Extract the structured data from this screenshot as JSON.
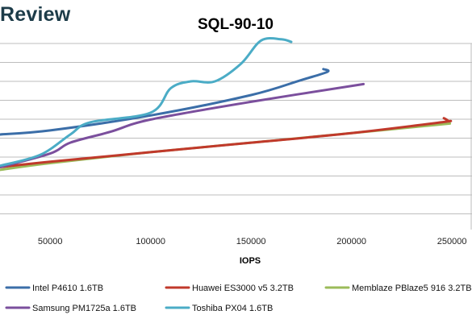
{
  "brand": {
    "name": "Review"
  },
  "chart_data": {
    "type": "line",
    "title": "SQL-90-10",
    "xlabel": "IOPS",
    "ylabel": "",
    "xlim": [
      25000,
      260000
    ],
    "x_ticks": [
      50000,
      100000,
      150000,
      200000,
      250000
    ],
    "x_tick_labels": [
      "50000",
      "100000",
      "150000",
      "200000",
      "250000"
    ],
    "grid": "horizontal",
    "legend_position": "bottom",
    "series": [
      {
        "name": "Intel P4610 1.6TB",
        "color": "#3b6ea8",
        "points": [
          [
            25000,
            1.16
          ],
          [
            50000,
            1.19
          ],
          [
            100000,
            1.3
          ],
          [
            150000,
            1.45
          ],
          [
            175000,
            1.56
          ],
          [
            188000,
            1.62
          ],
          [
            186000,
            1.64
          ]
        ]
      },
      {
        "name": "Huawei ES3000 v5 3.2TB",
        "color": "#c0392b",
        "points": [
          [
            25000,
            0.92
          ],
          [
            50000,
            0.96
          ],
          [
            100000,
            1.03
          ],
          [
            150000,
            1.1
          ],
          [
            200000,
            1.17
          ],
          [
            245000,
            1.25
          ],
          [
            248000,
            1.26
          ],
          [
            246000,
            1.28
          ]
        ]
      },
      {
        "name": "Memblaze PBlaze5 916 3.2TB",
        "color": "#9bbb59",
        "points": [
          [
            25000,
            0.9
          ],
          [
            50000,
            0.95
          ],
          [
            100000,
            1.03
          ],
          [
            150000,
            1.1
          ],
          [
            200000,
            1.17
          ],
          [
            249000,
            1.24
          ]
        ]
      },
      {
        "name": "Samsung PM1725a 1.6TB",
        "color": "#7b4f9d",
        "points": [
          [
            25000,
            0.92
          ],
          [
            50000,
            1.02
          ],
          [
            60000,
            1.1
          ],
          [
            80000,
            1.18
          ],
          [
            100000,
            1.27
          ],
          [
            150000,
            1.4
          ],
          [
            206000,
            1.53
          ]
        ]
      },
      {
        "name": "Toshiba PX04 1.6TB",
        "color": "#4bacc6",
        "points": [
          [
            25000,
            0.93
          ],
          [
            45000,
            1.01
          ],
          [
            60000,
            1.16
          ],
          [
            70000,
            1.25
          ],
          [
            100000,
            1.32
          ],
          [
            110000,
            1.5
          ],
          [
            120000,
            1.55
          ],
          [
            132000,
            1.55
          ],
          [
            145000,
            1.68
          ],
          [
            155000,
            1.85
          ],
          [
            165000,
            1.86
          ],
          [
            170000,
            1.84
          ]
        ]
      }
    ]
  }
}
